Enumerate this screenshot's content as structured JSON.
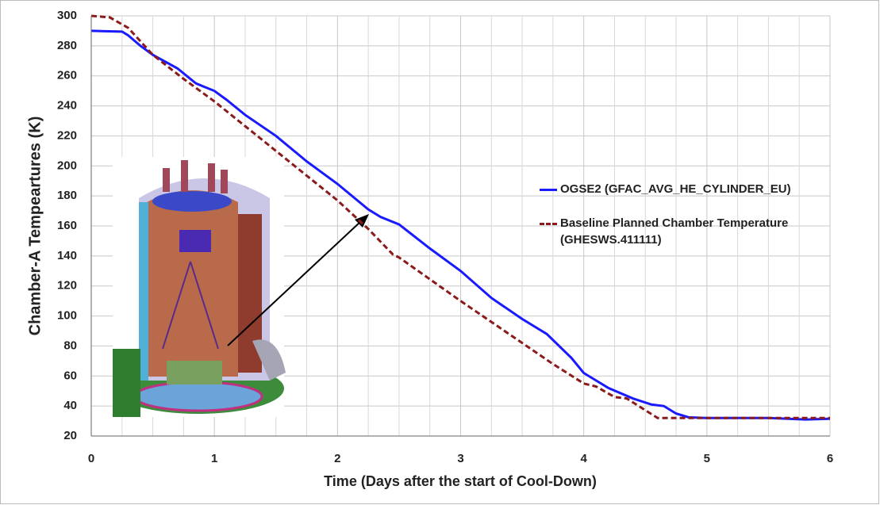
{
  "chart_data": {
    "type": "line",
    "x_label": "Time (Days after the start of Cool-Down)",
    "y_label": "Chamber-A Tempeartures (K)",
    "xlim": [
      0,
      6
    ],
    "xticks": [
      0,
      1,
      2,
      3,
      4,
      5,
      6
    ],
    "ylim": [
      20,
      300
    ],
    "yticks": [
      20,
      40,
      60,
      80,
      100,
      120,
      140,
      160,
      180,
      200,
      220,
      240,
      260,
      280,
      300
    ],
    "grid": true,
    "legend": "right",
    "series": [
      {
        "name": "OGSE2 (GFAC_AVG_HE_CYLINDER_EU)",
        "color": "#1a1aff",
        "style": "solid",
        "x": [
          0,
          0.25,
          0.3,
          0.4,
          0.5,
          0.7,
          0.85,
          1.0,
          1.1,
          1.25,
          1.5,
          1.75,
          2.0,
          2.25,
          2.35,
          2.5,
          2.75,
          3.0,
          3.25,
          3.5,
          3.7,
          3.9,
          4.0,
          4.2,
          4.4,
          4.55,
          4.65,
          4.75,
          4.85,
          5.0,
          5.5,
          5.8,
          6.0
        ],
        "values": [
          290,
          289.5,
          287,
          280,
          274,
          265,
          255,
          250,
          244,
          234,
          220,
          203,
          188,
          171,
          166,
          161,
          145,
          130,
          112,
          98,
          88,
          72,
          62,
          52,
          45,
          41,
          40,
          35,
          32.5,
          32,
          32,
          31,
          31.5
        ]
      },
      {
        "name": "Baseline Planned Chamber Temperature (GHESWS.411111)",
        "color": "#8b1a1a",
        "style": "dashed",
        "x": [
          0,
          0.15,
          0.3,
          0.5,
          0.75,
          1.0,
          1.5,
          2.0,
          2.25,
          2.45,
          2.5,
          3.0,
          3.5,
          3.75,
          4.0,
          4.1,
          4.25,
          4.35,
          4.6,
          5.0,
          6.0
        ],
        "values": [
          300,
          299,
          292,
          274,
          258,
          243,
          210,
          177,
          158,
          141,
          139,
          110,
          82,
          68,
          55,
          53,
          46,
          45,
          32,
          32,
          32
        ]
      }
    ]
  }
}
